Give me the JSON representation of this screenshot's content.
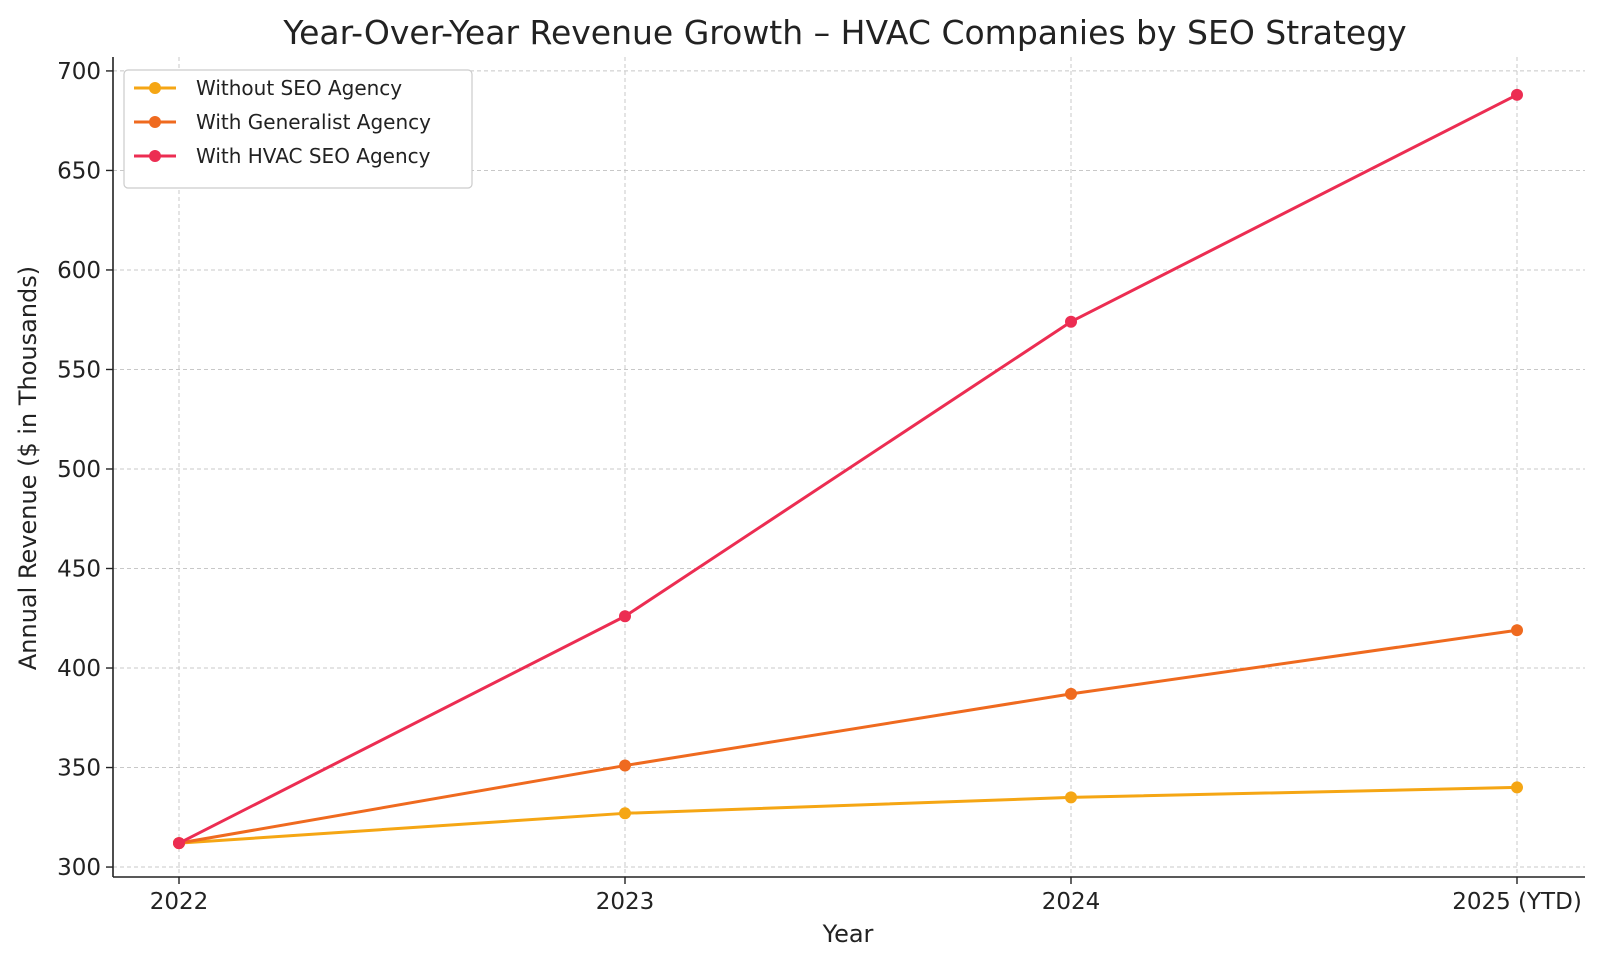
{
  "chart_data": {
    "type": "line",
    "title": "Year-Over-Year Revenue Growth – HVAC Companies by SEO Strategy",
    "xlabel": "Year",
    "ylabel": "Annual Revenue ($ in Thousands)",
    "categories": [
      "2022",
      "2023",
      "2024",
      "2025 (YTD)"
    ],
    "ylim": [
      295,
      707
    ],
    "yticks": [
      300,
      350,
      400,
      450,
      500,
      550,
      600,
      650,
      700
    ],
    "grid": true,
    "legend_position": "top-left",
    "series": [
      {
        "name": "Without SEO Agency",
        "color": "#f5a614",
        "values": [
          312,
          327,
          335,
          340
        ]
      },
      {
        "name": "With Generalist Agency",
        "color": "#ef6a1f",
        "values": [
          312,
          351,
          387,
          419
        ]
      },
      {
        "name": "With HVAC SEO Agency",
        "color": "#ec2d52",
        "values": [
          312,
          426,
          574,
          688
        ]
      }
    ]
  }
}
